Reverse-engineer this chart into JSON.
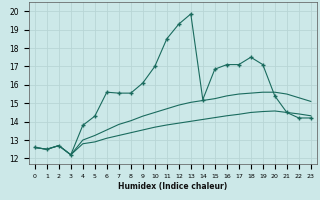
{
  "xlabel": "Humidex (Indice chaleur)",
  "xlim_min": -0.5,
  "xlim_max": 23.5,
  "ylim_min": 11.7,
  "ylim_max": 20.5,
  "background_color": "#cce8e8",
  "grid_color": "#b8d5d5",
  "line_color": "#1a6b5e",
  "line1_x": [
    0,
    1,
    2,
    3,
    4,
    5,
    6,
    7,
    8,
    9,
    10,
    11,
    12,
    13,
    14,
    15,
    16,
    17,
    18,
    19,
    20,
    21,
    22,
    23
  ],
  "line1_y": [
    12.6,
    12.5,
    12.7,
    12.2,
    13.8,
    14.3,
    15.6,
    15.55,
    15.55,
    16.1,
    17.0,
    18.5,
    19.3,
    19.85,
    15.2,
    16.85,
    17.1,
    17.1,
    17.5,
    17.1,
    15.4,
    14.5,
    14.2,
    14.2
  ],
  "line2_x": [
    0,
    1,
    2,
    3,
    4,
    5,
    6,
    7,
    8,
    9,
    10,
    11,
    12,
    13,
    14,
    15,
    16,
    17,
    18,
    19,
    20,
    21,
    22,
    23
  ],
  "line2_y": [
    12.6,
    12.5,
    12.7,
    12.2,
    13.0,
    13.25,
    13.55,
    13.85,
    14.05,
    14.3,
    14.5,
    14.7,
    14.9,
    15.05,
    15.15,
    15.25,
    15.4,
    15.5,
    15.55,
    15.6,
    15.6,
    15.5,
    15.3,
    15.1
  ],
  "line3_x": [
    0,
    1,
    2,
    3,
    4,
    5,
    6,
    7,
    8,
    9,
    10,
    11,
    12,
    13,
    14,
    15,
    16,
    17,
    18,
    19,
    20,
    21,
    22,
    23
  ],
  "line3_y": [
    12.6,
    12.5,
    12.7,
    12.2,
    12.8,
    12.9,
    13.1,
    13.25,
    13.4,
    13.55,
    13.7,
    13.82,
    13.92,
    14.02,
    14.12,
    14.22,
    14.32,
    14.4,
    14.5,
    14.55,
    14.58,
    14.5,
    14.42,
    14.32
  ]
}
